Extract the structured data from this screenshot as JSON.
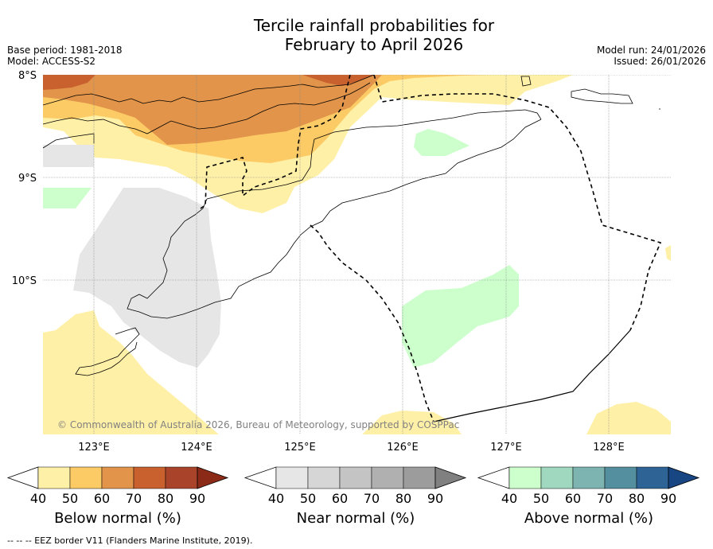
{
  "title_line1": "Tercile rainfall probabilities for",
  "title_line2": "February to April 2026",
  "base_period": "Base period: 1981-2018",
  "model": "Model: ACCESS-S2",
  "model_run": "Model run: 24/01/2026",
  "issued": "Issued: 26/01/2026",
  "lat_labels": [
    "8°S",
    "9°S",
    "10°S"
  ],
  "lon_labels": [
    "123°E",
    "124°E",
    "125°E",
    "126°E",
    "127°E",
    "128°E"
  ],
  "copyright": "© Commonwealth of Australia 2026, Bureau of Meteorology, supported by COSPPac",
  "footer": "--  --  -- EEZ border V11 (Flanders Marine Institute, 2019).",
  "colorbars": [
    {
      "label": "Below normal (%)",
      "ticks": [
        "40",
        "50",
        "60",
        "70",
        "80",
        "90"
      ],
      "colors": [
        "#fff0a8",
        "#fdcb65",
        "#e1944a",
        "#c9612f",
        "#a9442a"
      ],
      "over_color": "#8b2a17"
    },
    {
      "label": "Near normal (%)",
      "ticks": [
        "40",
        "50",
        "60",
        "70",
        "80",
        "90"
      ],
      "colors": [
        "#e6e6e6",
        "#d6d6d6",
        "#c4c4c4",
        "#b0b0b0",
        "#9c9c9c"
      ],
      "over_color": "#808080"
    },
    {
      "label": "Above normal (%)",
      "ticks": [
        "40",
        "50",
        "60",
        "70",
        "80",
        "90"
      ],
      "colors": [
        "#ccffcc",
        "#a0d8bf",
        "#7db3b0",
        "#548f9f",
        "#2e6396"
      ],
      "over_color": "#174682"
    }
  ]
}
